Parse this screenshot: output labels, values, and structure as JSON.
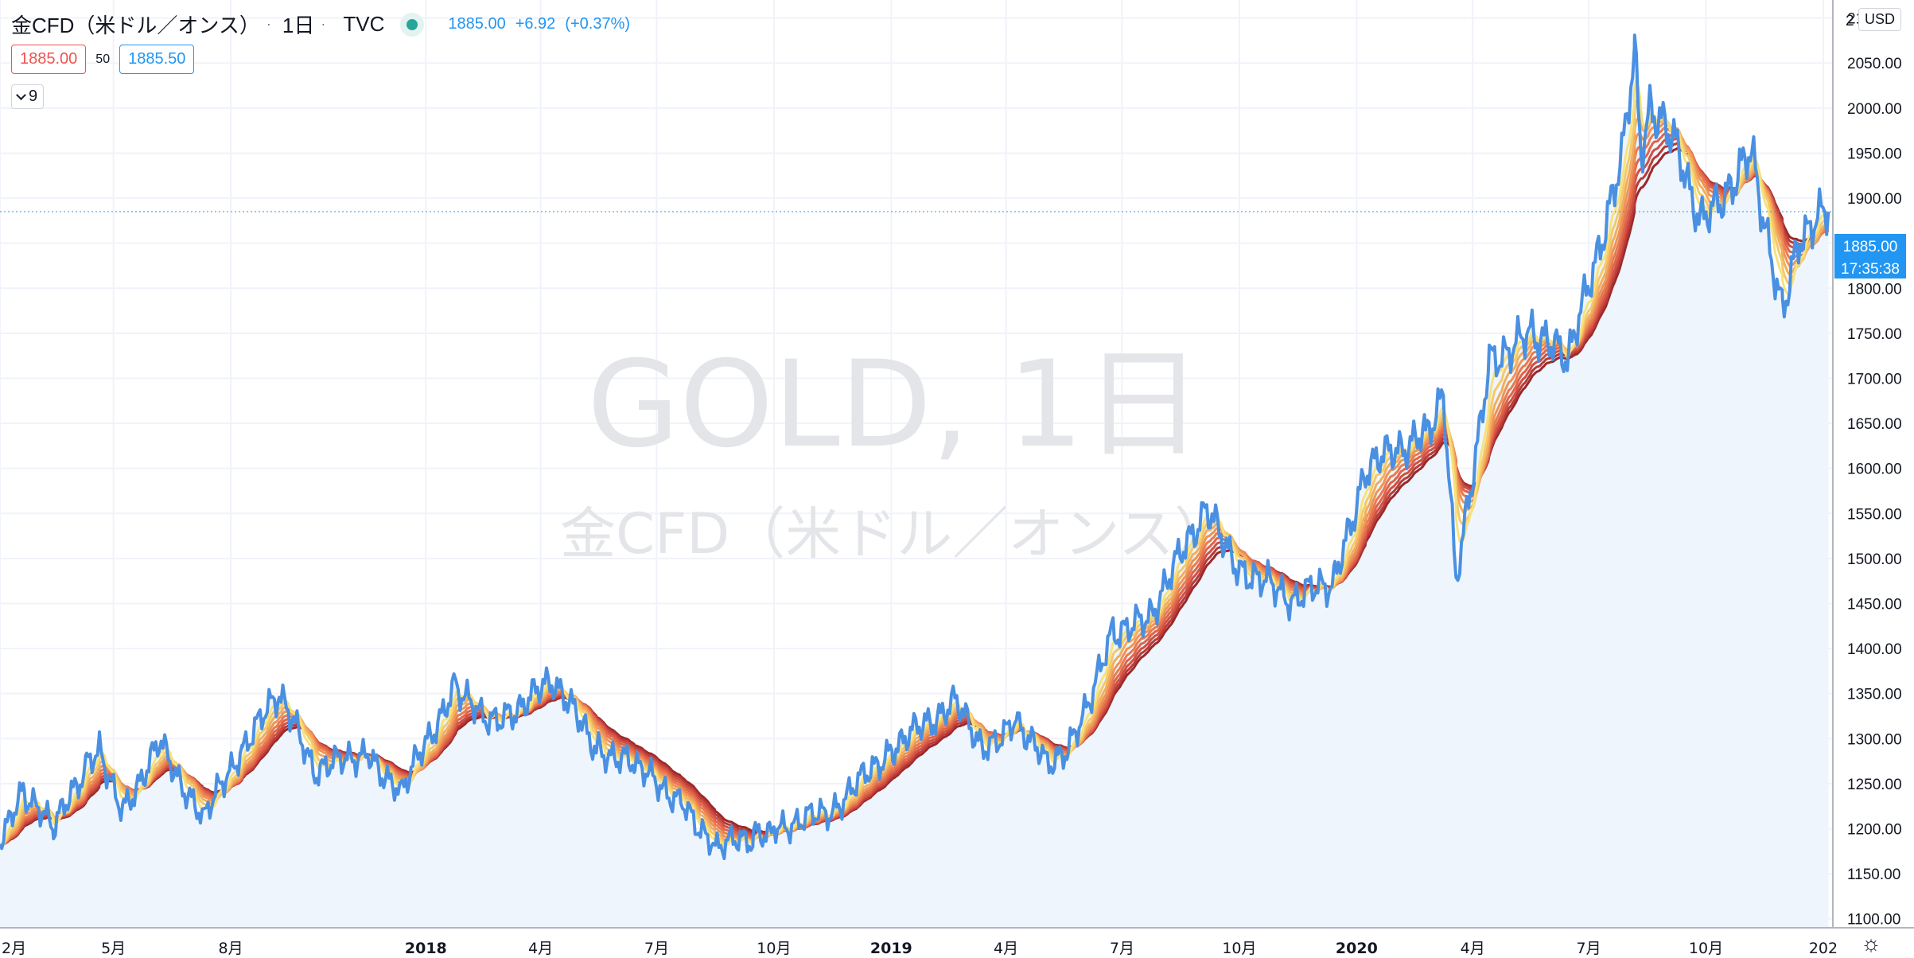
{
  "header": {
    "symbol": "金CFD（米ドル／オンス）",
    "interval": "1日",
    "source": "TVC",
    "last": "1885.00",
    "change": "+6.92",
    "change_pct": "(+0.37%)"
  },
  "trade": {
    "bid": "1885.00",
    "spread": "50",
    "ask": "1885.50"
  },
  "indicators": {
    "count": "9"
  },
  "currency": "USD",
  "watermark": {
    "title": "GOLD, 1日",
    "subtitle": "金CFD（米ドル／オンス）"
  },
  "price_axis": {
    "labels": [
      "1100.00",
      "1150.00",
      "1200.00",
      "1250.00",
      "1300.00",
      "1350.00",
      "1400.00",
      "1450.00",
      "1500.00",
      "1550.00",
      "1600.00",
      "1650.00",
      "1700.00",
      "1750.00",
      "1800.00",
      "1850.00",
      "1900.00",
      "1950.00",
      "2000.00",
      "2050.00",
      "2100.00"
    ],
    "top_cut_label": "2",
    "last_price_label": "1885.00",
    "countdown": "17:35:38"
  },
  "time_axis": {
    "labels": [
      "2月",
      "5月",
      "8月",
      "2018",
      "4月",
      "7月",
      "10月",
      "2019",
      "4月",
      "7月",
      "10月",
      "2020",
      "4月",
      "7月",
      "10月",
      "202"
    ]
  },
  "colors": {
    "price_line": "#4a90e2",
    "area_fill": "#eef5fc",
    "ribbon": [
      "#f7e27c",
      "#f5c86a",
      "#f2ad5e",
      "#ee9355",
      "#e87a4f",
      "#df6449",
      "#d04f42",
      "#b93a38",
      "#9a2929"
    ]
  },
  "chart_data": {
    "type": "line",
    "title": "GOLD, 1日",
    "xlabel": "",
    "ylabel": "",
    "ylim": [
      1090,
      2120
    ],
    "xlim": [
      "2017-02-01",
      "2021-01-06"
    ],
    "grid": true,
    "x": [
      "2017-02-01",
      "2017-02-20",
      "2017-03-15",
      "2017-04-10",
      "2017-04-20",
      "2017-05-09",
      "2017-06-06",
      "2017-07-10",
      "2017-08-10",
      "2017-09-08",
      "2017-10-06",
      "2017-11-15",
      "2017-12-12",
      "2018-01-25",
      "2018-02-15",
      "2018-03-10",
      "2018-04-11",
      "2018-05-15",
      "2018-06-14",
      "2018-07-20",
      "2018-08-16",
      "2018-09-15",
      "2018-10-01",
      "2018-11-15",
      "2019-01-02",
      "2019-02-20",
      "2019-03-15",
      "2019-04-10",
      "2019-05-02",
      "2019-05-20",
      "2019-06-25",
      "2019-07-20",
      "2019-09-04",
      "2019-10-01",
      "2019-11-12",
      "2019-12-15",
      "2020-01-08",
      "2020-02-24",
      "2020-03-09",
      "2020-03-19",
      "2020-04-14",
      "2020-05-20",
      "2020-06-15",
      "2020-07-27",
      "2020-08-06",
      "2020-08-11",
      "2020-08-20",
      "2020-09-10",
      "2020-09-28",
      "2020-11-06",
      "2020-11-30",
      "2020-12-15",
      "2021-01-05"
    ],
    "series": [
      {
        "values": [
          1190,
          1240,
          1200,
          1270,
          1285,
          1220,
          1295,
          1210,
          1290,
          1350,
          1265,
          1285,
          1240,
          1360,
          1320,
          1330,
          1365,
          1290,
          1270,
          1230,
          1180,
          1190,
          1200,
          1220,
          1290,
          1340,
          1290,
          1320,
          1275,
          1285,
          1420,
          1430,
          1555,
          1490,
          1455,
          1475,
          1600,
          1640,
          1680,
          1470,
          1720,
          1750,
          1720,
          1940,
          2063,
          1950,
          2000,
          1950,
          1870,
          1950,
          1770,
          1860,
          1885
        ]
      }
    ]
  }
}
